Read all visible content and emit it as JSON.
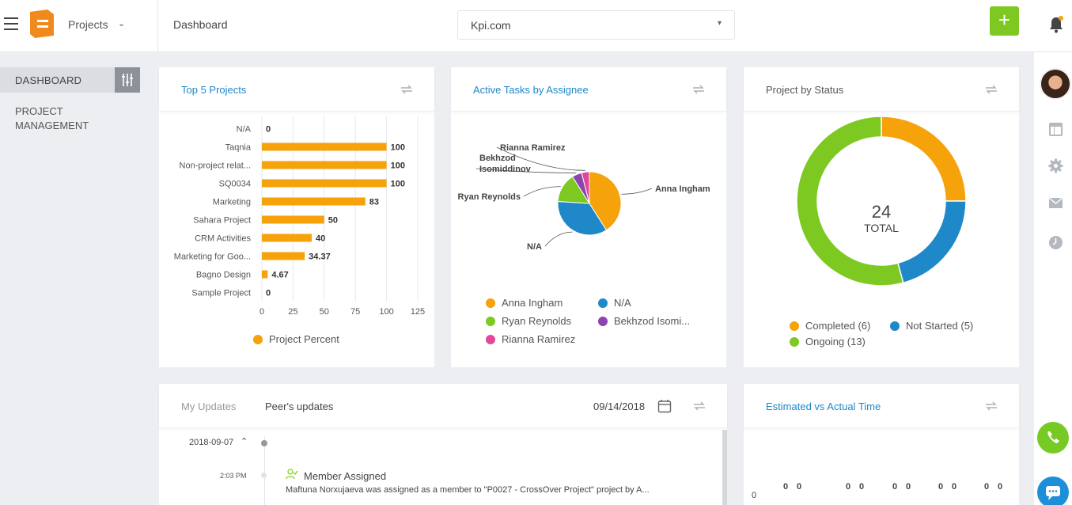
{
  "header": {
    "project_selector": "Projects",
    "breadcrumb": "Dashboard",
    "site": "Kpi.com"
  },
  "sidebar": {
    "items": [
      {
        "label": "DASHBOARD"
      },
      {
        "label": "PROJECT MANAGEMENT"
      }
    ]
  },
  "cards": {
    "top5": {
      "title": "Top 5 Projects",
      "legend": "Project Percent"
    },
    "tasks": {
      "title": "Active Tasks by Assignee"
    },
    "status": {
      "title": "Project by Status",
      "center_value": "24",
      "center_label": "TOTAL"
    },
    "updates": {
      "tab_mine": "My Updates",
      "tab_peers": "Peer's updates",
      "date": "09/14/2018",
      "group_date": "2018-09-07",
      "time": "2:03 PM",
      "event_title": "Member Assigned",
      "event_text": "Maftuna Norxujaeva was assigned as a member to \"P0027 - CrossOver Project\" project by A..."
    },
    "estimated": {
      "title": "Estimated vs Actual Time",
      "axis_zero": "0",
      "zeros": [
        "0",
        "0",
        "0",
        "0",
        "0",
        "0",
        "0",
        "0",
        "0",
        "0"
      ]
    }
  },
  "colors": {
    "orange": "#f5a20b",
    "blue": "#1e88c9",
    "green": "#7dc922",
    "purple": "#8e44ad",
    "pink": "#e3479b",
    "link": "#1e88c9"
  },
  "chart_data": [
    {
      "type": "bar",
      "orientation": "horizontal",
      "title": "Top 5 Projects",
      "categories": [
        "N/A",
        "Taqnia",
        "Non-project relat...",
        "SQ0034",
        "Marketing",
        "Sahara Project",
        "CRM Activities",
        "Marketing for Goo...",
        "Bagno Design",
        "Sample Project"
      ],
      "series": [
        {
          "name": "Project Percent",
          "values": [
            0,
            100,
            100,
            100,
            83,
            50,
            40,
            34.37,
            4.67,
            0
          ]
        }
      ],
      "value_labels": [
        "0",
        "100",
        "100",
        "100",
        "83",
        "50",
        "40",
        "34.37",
        "4.67",
        "0"
      ],
      "xlim": [
        0,
        125
      ],
      "xticks": [
        0,
        25,
        50,
        75,
        100,
        125
      ],
      "grid": true,
      "legend": "bottom"
    },
    {
      "type": "pie",
      "title": "Active Tasks by Assignee",
      "labels": [
        "Anna Ingham",
        "N/A",
        "Ryan Reynolds",
        "Bekhzod Isomiddinov",
        "Rianna Ramirez"
      ],
      "legend_labels": [
        "Anna Ingham",
        "N/A",
        "Ryan Reynolds",
        "Bekhzod Isomi...",
        "Rianna Ramirez"
      ],
      "callout_labels": [
        "Anna Ingham",
        "N/A",
        "Ryan Reynolds",
        "Bekhzod\nIsomiddinov",
        "Rianna Ramirez"
      ],
      "values": [
        41,
        35,
        15,
        5,
        4
      ],
      "colors": [
        "#f5a20b",
        "#1e88c9",
        "#7dc922",
        "#8e44ad",
        "#e3479b"
      ],
      "legend": "bottom"
    },
    {
      "type": "pie",
      "subtype": "donut",
      "title": "Project by Status",
      "labels": [
        "Completed (6)",
        "Not Started (5)",
        "Ongoing (13)"
      ],
      "values": [
        6,
        5,
        13
      ],
      "colors": [
        "#f5a20b",
        "#1e88c9",
        "#7dc922"
      ],
      "legend": "bottom"
    }
  ]
}
